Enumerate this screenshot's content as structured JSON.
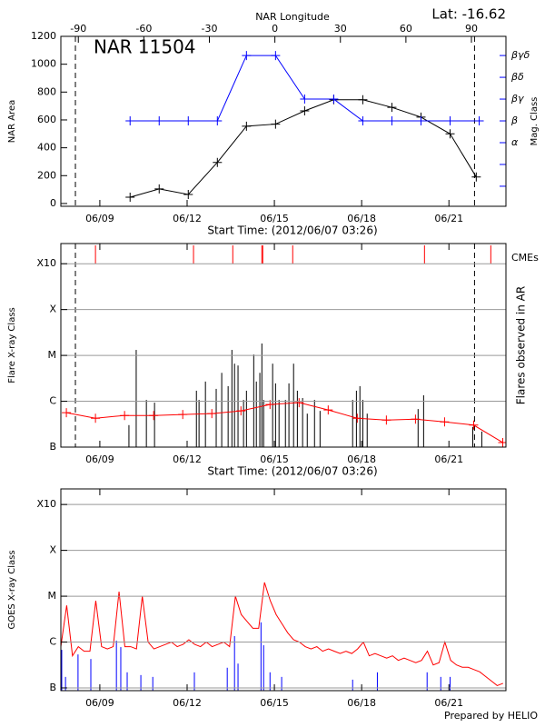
{
  "footer": "Prepared by HELIO",
  "chart_data": [
    {
      "type": "line",
      "title": "NAR 11504",
      "annotation": "Lat: -16.62",
      "x_label": "Start Time: (2012/06/07 03:26)",
      "x2_label": "NAR Longitude",
      "y_label": "NAR Area",
      "y2_label": "Mag. Class",
      "y2_color": "#0000ff",
      "xlim": [
        0,
        15.3
      ],
      "xticks": [
        {
          "value": 1.34,
          "label": "06/09"
        },
        {
          "value": 4.34,
          "label": "06/12"
        },
        {
          "value": 7.34,
          "label": "06/15"
        },
        {
          "value": 10.34,
          "label": "06/18"
        },
        {
          "value": 13.34,
          "label": "06/21"
        }
      ],
      "x2lim": [
        -98,
        105.8
      ],
      "x2ticks": [
        -90,
        -60,
        -30,
        0,
        30,
        60,
        90
      ],
      "ylim": [
        -20,
        1200
      ],
      "yticks": [
        0,
        200,
        400,
        600,
        800,
        1000,
        1200
      ],
      "y2lim": [
        -2.92,
        4.88
      ],
      "y2ticks": [
        {
          "value": -2,
          "label": null
        },
        {
          "value": -1,
          "label": null
        },
        {
          "value": 0,
          "label": "α"
        },
        {
          "value": 1,
          "label": "β"
        },
        {
          "value": 2,
          "label": "βγ"
        },
        {
          "value": 3,
          "label": "βδ"
        },
        {
          "value": 4,
          "label": "βγδ"
        }
      ],
      "dashed_lines_x": [
        0.5,
        14.22
      ],
      "grid": false,
      "series": [
        {
          "color": "#000000",
          "style": "plus-line",
          "x": [
            2.38,
            3.38,
            4.38,
            5.38,
            6.38,
            7.38,
            8.38,
            9.38,
            10.38,
            11.38,
            12.38,
            13.38,
            14.28
          ],
          "values": [
            45,
            105,
            65,
            295,
            555,
            570,
            665,
            745,
            745,
            690,
            620,
            500,
            190
          ]
        },
        {
          "color": "#0000ff",
          "style": "plus-line",
          "axis": "y2",
          "x": [
            2.38,
            3.38,
            4.38,
            5.38,
            6.38,
            7.38,
            8.38,
            9.38,
            10.38,
            11.38,
            12.38,
            13.38,
            14.38
          ],
          "values": [
            1,
            1,
            1,
            1,
            4,
            4,
            2,
            2,
            1,
            1,
            1,
            1,
            1
          ]
        }
      ]
    },
    {
      "type": "line",
      "x_label": "Start Time: (2012/06/07 03:26)",
      "y_label": "Flare X-ray Class",
      "y2_label": "Flares observed in AR",
      "y2_color": "#000000",
      "xlim": [
        0,
        15.3
      ],
      "xticks": [
        {
          "value": 1.34,
          "label": "06/09"
        },
        {
          "value": 4.34,
          "label": "06/12"
        },
        {
          "value": 7.34,
          "label": "06/15"
        },
        {
          "value": 10.34,
          "label": "06/18"
        },
        {
          "value": 13.34,
          "label": "06/21"
        }
      ],
      "ylim": [
        0,
        4.44
      ],
      "yticks": [
        {
          "value": 0,
          "label": "B"
        },
        {
          "value": 1,
          "label": "C"
        },
        {
          "value": 2,
          "label": "M"
        },
        {
          "value": 3,
          "label": "X"
        },
        {
          "value": 4,
          "label": "X10"
        }
      ],
      "dashed_lines_x": [
        0.5,
        14.22
      ],
      "grid": true,
      "series": [
        {
          "color": "#000000",
          "style": "spike",
          "x": [
            2.34,
            2.59,
            2.94,
            3.22,
            4.66,
            4.75,
            4.97,
            5.34,
            5.53,
            5.75,
            5.88,
            5.97,
            6.09,
            6.28,
            6.38,
            6.63,
            6.72,
            6.84,
            6.91,
            6.97,
            7.28,
            7.38,
            7.5,
            7.72,
            7.84,
            8.0,
            8.13,
            8.31,
            8.47,
            8.72,
            8.91,
            10.03,
            10.16,
            10.28,
            10.38,
            10.53,
            12.28,
            12.47,
            14.16,
            14.47
          ],
          "values": [
            0.48,
            2.12,
            1.03,
            0.97,
            1.23,
            1.03,
            1.43,
            1.27,
            1.62,
            1.33,
            2.12,
            1.82,
            1.78,
            1.03,
            1.23,
            2.02,
            1.43,
            1.62,
            2.26,
            1.03,
            1.82,
            1.39,
            1.03,
            1.03,
            1.39,
            1.82,
            1.23,
            1.07,
            0.73,
            1.03,
            0.79,
            1.03,
            1.23,
            1.33,
            1.03,
            0.73,
            0.83,
            1.13,
            0.44,
            0.34
          ]
        },
        {
          "color": "#ff0000",
          "style": "plus-line",
          "x": [
            0.19,
            1.19,
            2.19,
            3.19,
            4.19,
            5.19,
            6.19,
            7.19,
            8.19,
            9.19,
            10.19,
            11.19,
            12.19,
            13.19,
            14.19,
            15.19
          ],
          "values": [
            0.75,
            0.63,
            0.69,
            0.69,
            0.71,
            0.73,
            0.79,
            0.93,
            0.97,
            0.81,
            0.63,
            0.59,
            0.61,
            0.55,
            0.48,
            0.1
          ]
        },
        {
          "name": "CMEs",
          "color": "#ff0000",
          "style": "top-tick",
          "x": [
            1.19,
            4.56,
            5.91,
            6.91,
            6.94,
            7.97,
            12.5,
            14.78
          ]
        }
      ]
    },
    {
      "type": "line",
      "y_label": "GOES X-ray Class",
      "xlim": [
        0,
        15.3
      ],
      "xticks": [
        {
          "value": 1.34,
          "label": "06/09"
        },
        {
          "value": 4.34,
          "label": "06/12"
        },
        {
          "value": 7.34,
          "label": "06/15"
        },
        {
          "value": 10.34,
          "label": "06/18"
        },
        {
          "value": 13.34,
          "label": "06/21"
        }
      ],
      "ylim": [
        -0.06,
        4.34
      ],
      "yticks": [
        {
          "value": 0,
          "label": "B"
        },
        {
          "value": 1,
          "label": "C"
        },
        {
          "value": 2,
          "label": "M"
        },
        {
          "value": 3,
          "label": "X"
        },
        {
          "value": 4,
          "label": "X10"
        }
      ],
      "grid": true,
      "series": [
        {
          "color": "#ff0000",
          "style": "line",
          "x": [
            0,
            0.2,
            0.4,
            0.6,
            0.8,
            1,
            1.2,
            1.4,
            1.6,
            1.8,
            2,
            2.2,
            2.4,
            2.6,
            2.8,
            3,
            3.2,
            3.4,
            3.6,
            3.8,
            4,
            4.2,
            4.4,
            4.6,
            4.8,
            5,
            5.2,
            5.4,
            5.6,
            5.8,
            6,
            6.2,
            6.4,
            6.6,
            6.8,
            7,
            7.2,
            7.4,
            7.6,
            7.8,
            8,
            8.2,
            8.4,
            8.6,
            8.8,
            9,
            9.2,
            9.4,
            9.6,
            9.8,
            10,
            10.2,
            10.4,
            10.6,
            10.8,
            11,
            11.2,
            11.4,
            11.6,
            11.8,
            12,
            12.2,
            12.4,
            12.6,
            12.8,
            13,
            13.2,
            13.4,
            13.6,
            13.8,
            14,
            14.2,
            14.4,
            14.6,
            14.8,
            15,
            15.2
          ],
          "values": [
            0.9,
            1.8,
            0.7,
            0.9,
            0.8,
            0.8,
            1.9,
            0.9,
            0.85,
            0.9,
            2.1,
            0.9,
            0.9,
            0.85,
            2.0,
            1.0,
            0.85,
            0.9,
            0.95,
            1.0,
            0.9,
            0.95,
            1.05,
            0.95,
            0.9,
            1.0,
            0.9,
            0.95,
            1.0,
            0.9,
            2.0,
            1.6,
            1.45,
            1.3,
            1.3,
            2.3,
            1.9,
            1.6,
            1.4,
            1.2,
            1.05,
            1.0,
            0.9,
            0.85,
            0.9,
            0.8,
            0.85,
            0.8,
            0.75,
            0.8,
            0.75,
            0.85,
            1.0,
            0.7,
            0.75,
            0.7,
            0.65,
            0.7,
            0.6,
            0.65,
            0.6,
            0.55,
            0.6,
            0.8,
            0.5,
            0.55,
            1.0,
            0.6,
            0.5,
            0.45,
            0.45,
            0.4,
            0.35,
            0.25,
            0.15,
            0.05,
            0.1
          ]
        },
        {
          "color": "#0000ff",
          "style": "spike",
          "x": [
            0.03,
            0.16,
            0.59,
            1.03,
            1.91,
            2.06,
            2.28,
            2.75,
            3.16,
            4.59,
            5.72,
            5.97,
            6.09,
            6.88,
            6.97,
            7.19,
            7.59,
            10.03,
            10.88,
            12.59,
            13.06,
            13.38
          ],
          "values": [
            0.83,
            0.24,
            0.73,
            0.63,
            1.03,
            0.89,
            0.34,
            0.28,
            0.24,
            0.34,
            0.44,
            1.13,
            0.53,
            1.43,
            0.93,
            0.34,
            0.24,
            0.18,
            0.34,
            0.34,
            0.24,
            0.24
          ]
        }
      ]
    }
  ]
}
